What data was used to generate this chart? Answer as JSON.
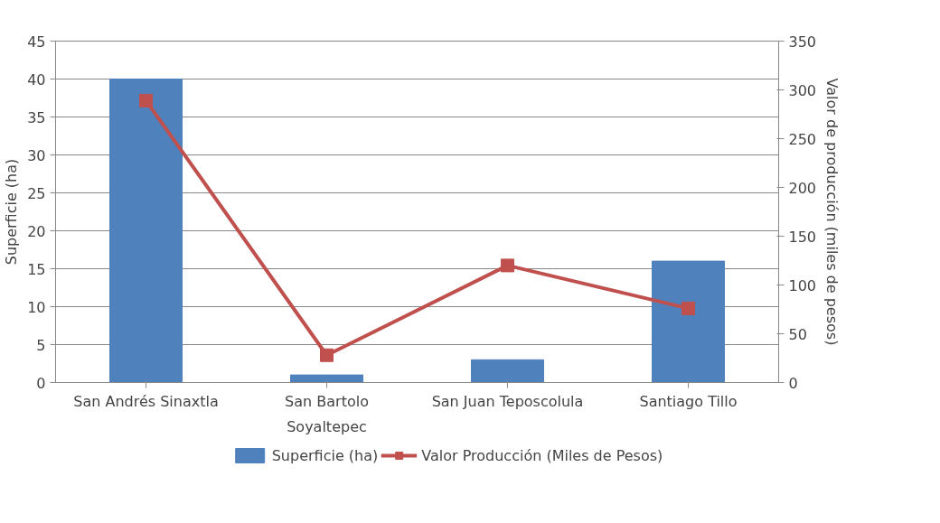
{
  "chart_data": {
    "type": "bar",
    "categories": [
      "San Andrés Sinaxtla",
      "San Bartolo\nSoyaltepec",
      "San Juan Teposcolula",
      "Santiago Tillo"
    ],
    "series": [
      {
        "name": "Superficie (ha)",
        "color": "#4f81bd",
        "values": [
          40,
          1,
          3,
          16
        ]
      },
      {
        "name": "Valor Producción (Miles de Pesos)",
        "type": "line",
        "axis": "y2",
        "color": "#c0504d",
        "marker": "square",
        "values": [
          289,
          28,
          120,
          76
        ]
      }
    ],
    "ylabel": "Superficie (ha)",
    "y2label": "Valor de producción (miles de pesos)",
    "ylim": [
      0,
      45
    ],
    "yticks": [
      0,
      5,
      10,
      15,
      20,
      25,
      30,
      35,
      40,
      45
    ],
    "y2lim": [
      0,
      350
    ],
    "y2ticks": [
      0,
      50,
      100,
      150,
      200,
      250,
      300,
      350
    ],
    "grid": "y",
    "legend": "bottom"
  }
}
